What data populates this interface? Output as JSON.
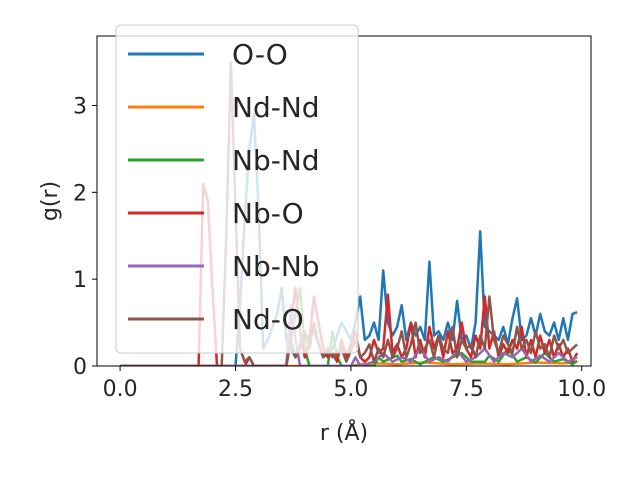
{
  "chart_data": {
    "type": "line",
    "xlabel": "r (Å)",
    "ylabel": "g(r)",
    "xlim": [
      -0.5,
      10.2
    ],
    "ylim": [
      0,
      3.8
    ],
    "xticks": [
      "0.0",
      "2.5",
      "5.0",
      "7.5",
      "10.0"
    ],
    "yticks": [
      "0",
      "1",
      "2",
      "3"
    ],
    "legend_position": "top-left",
    "series": [
      {
        "name": "O-O",
        "color": "#1f77b4",
        "points": [
          [
            0,
            0
          ],
          [
            2.5,
            0
          ],
          [
            2.6,
            0.7
          ],
          [
            2.7,
            1.7
          ],
          [
            2.8,
            2.5
          ],
          [
            2.9,
            2.9
          ],
          [
            3.0,
            1.8
          ],
          [
            3.1,
            0.2
          ],
          [
            3.2,
            0.3
          ],
          [
            3.4,
            0.6
          ],
          [
            3.5,
            0.9
          ],
          [
            3.6,
            0.3
          ],
          [
            3.8,
            0.1
          ],
          [
            4.0,
            0.3
          ],
          [
            4.2,
            0.4
          ],
          [
            4.4,
            0.1
          ],
          [
            4.6,
            0.2
          ],
          [
            4.8,
            0.5
          ],
          [
            5.0,
            0.3
          ],
          [
            5.1,
            0.5
          ],
          [
            5.2,
            0.8
          ],
          [
            5.3,
            0.3
          ],
          [
            5.4,
            0.35
          ],
          [
            5.5,
            0.5
          ],
          [
            5.6,
            0.3
          ],
          [
            5.7,
            1.1
          ],
          [
            5.8,
            0.5
          ],
          [
            5.9,
            0.35
          ],
          [
            6.0,
            0.45
          ],
          [
            6.1,
            0.7
          ],
          [
            6.2,
            0.3
          ],
          [
            6.3,
            0.5
          ],
          [
            6.4,
            0.35
          ],
          [
            6.5,
            0.45
          ],
          [
            6.6,
            0.3
          ],
          [
            6.7,
            1.2
          ],
          [
            6.8,
            0.35
          ],
          [
            6.9,
            0.4
          ],
          [
            7.0,
            0.3
          ],
          [
            7.1,
            0.5
          ],
          [
            7.2,
            0.3
          ],
          [
            7.3,
            0.75
          ],
          [
            7.4,
            0.3
          ],
          [
            7.5,
            0.35
          ],
          [
            7.6,
            0.2
          ],
          [
            7.7,
            0.5
          ],
          [
            7.8,
            1.55
          ],
          [
            7.9,
            0.45
          ],
          [
            8.0,
            0.4
          ],
          [
            8.1,
            0.35
          ],
          [
            8.2,
            0.3
          ],
          [
            8.3,
            0.45
          ],
          [
            8.4,
            0.25
          ],
          [
            8.5,
            0.55
          ],
          [
            8.6,
            0.78
          ],
          [
            8.7,
            0.3
          ],
          [
            8.8,
            0.35
          ],
          [
            8.9,
            0.55
          ],
          [
            9.0,
            0.35
          ],
          [
            9.1,
            0.6
          ],
          [
            9.2,
            0.4
          ],
          [
            9.3,
            0.35
          ],
          [
            9.4,
            0.5
          ],
          [
            9.5,
            0.3
          ],
          [
            9.6,
            0.55
          ],
          [
            9.7,
            0.3
          ],
          [
            9.8,
            0.6
          ],
          [
            9.9,
            0.62
          ]
        ]
      },
      {
        "name": "Nd-Nd",
        "color": "#ff7f0e",
        "points": [
          [
            0,
            0
          ],
          [
            5.0,
            0
          ],
          [
            5.2,
            0.02
          ],
          [
            5.6,
            0.03
          ],
          [
            6.0,
            0.02
          ],
          [
            6.6,
            0.04
          ],
          [
            7.2,
            0.02
          ],
          [
            7.8,
            0.03
          ],
          [
            8.4,
            0.02
          ],
          [
            9.0,
            0.04
          ],
          [
            9.6,
            0.03
          ],
          [
            9.9,
            0.05
          ]
        ]
      },
      {
        "name": "Nb-Nd",
        "color": "#2ca02c",
        "points": [
          [
            0,
            0
          ],
          [
            3.6,
            0
          ],
          [
            3.7,
            0.3
          ],
          [
            3.8,
            0.6
          ],
          [
            3.9,
            0.9
          ],
          [
            4.0,
            0.2
          ],
          [
            4.1,
            0
          ],
          [
            4.5,
            0
          ],
          [
            4.6,
            0.4
          ],
          [
            4.7,
            0.1
          ],
          [
            4.8,
            0
          ],
          [
            5.5,
            0
          ],
          [
            5.6,
            0.1
          ],
          [
            5.7,
            0.05
          ],
          [
            6.0,
            0.12
          ],
          [
            6.1,
            0.05
          ],
          [
            6.3,
            0.08
          ],
          [
            6.5,
            0.02
          ],
          [
            6.8,
            0.1
          ],
          [
            7.0,
            0.05
          ],
          [
            7.4,
            0.15
          ],
          [
            7.6,
            0.05
          ],
          [
            7.9,
            0.05
          ],
          [
            8.0,
            0.12
          ],
          [
            8.2,
            0.05
          ],
          [
            8.4,
            0.2
          ],
          [
            8.6,
            0.05
          ],
          [
            8.8,
            0.1
          ],
          [
            9.0,
            0.04
          ],
          [
            9.2,
            0.15
          ],
          [
            9.4,
            0.05
          ],
          [
            9.6,
            0.08
          ],
          [
            9.8,
            0.02
          ],
          [
            9.9,
            0.06
          ]
        ]
      },
      {
        "name": "Nb-O",
        "color": "#d62728",
        "points": [
          [
            0,
            0
          ],
          [
            1.7,
            0
          ],
          [
            1.8,
            2.1
          ],
          [
            1.9,
            1.9
          ],
          [
            2.0,
            0.9
          ],
          [
            2.1,
            0
          ],
          [
            2.7,
            0
          ],
          [
            2.8,
            0.1
          ],
          [
            2.9,
            0
          ],
          [
            3.6,
            0
          ],
          [
            3.7,
            0.5
          ],
          [
            3.8,
            0.9
          ],
          [
            3.9,
            0.4
          ],
          [
            4.0,
            0.1
          ],
          [
            4.1,
            0.3
          ],
          [
            4.2,
            0.8
          ],
          [
            4.3,
            0.5
          ],
          [
            4.4,
            0.2
          ],
          [
            4.5,
            0.1
          ],
          [
            4.6,
            0.15
          ],
          [
            4.7,
            0.05
          ],
          [
            4.8,
            0.3
          ],
          [
            4.9,
            0.1
          ],
          [
            5.0,
            0.25
          ],
          [
            5.1,
            0.4
          ],
          [
            5.2,
            0.1
          ],
          [
            5.3,
            0.05
          ],
          [
            5.4,
            0.1
          ],
          [
            5.5,
            0.3
          ],
          [
            5.6,
            0.15
          ],
          [
            5.7,
            0.2
          ],
          [
            5.8,
            0.82
          ],
          [
            5.9,
            0.15
          ],
          [
            6.0,
            0.25
          ],
          [
            6.1,
            0.1
          ],
          [
            6.2,
            0.2
          ],
          [
            6.3,
            0.5
          ],
          [
            6.4,
            0.1
          ],
          [
            6.5,
            0.3
          ],
          [
            6.6,
            0.1
          ],
          [
            6.7,
            0.45
          ],
          [
            6.8,
            0.2
          ],
          [
            6.9,
            0.35
          ],
          [
            7.0,
            0.1
          ],
          [
            7.1,
            0.4
          ],
          [
            7.2,
            0.15
          ],
          [
            7.3,
            0.2
          ],
          [
            7.4,
            0.5
          ],
          [
            7.5,
            0.2
          ],
          [
            7.6,
            0.1
          ],
          [
            7.7,
            0.35
          ],
          [
            7.8,
            0.2
          ],
          [
            7.9,
            0.8
          ],
          [
            8.0,
            0.2
          ],
          [
            8.1,
            0.4
          ],
          [
            8.2,
            0.1
          ],
          [
            8.3,
            0.25
          ],
          [
            8.4,
            0.15
          ],
          [
            8.5,
            0.3
          ],
          [
            8.6,
            0.2
          ],
          [
            8.7,
            0.45
          ],
          [
            8.8,
            0.1
          ],
          [
            8.9,
            0.3
          ],
          [
            9.0,
            0.1
          ],
          [
            9.1,
            0.35
          ],
          [
            9.2,
            0.15
          ],
          [
            9.3,
            0.3
          ],
          [
            9.4,
            0.1
          ],
          [
            9.5,
            0.25
          ],
          [
            9.6,
            0.1
          ],
          [
            9.7,
            0.2
          ],
          [
            9.8,
            0.05
          ],
          [
            9.9,
            0.15
          ]
        ]
      },
      {
        "name": "Nb-Nb",
        "color": "#9467bd",
        "points": [
          [
            0,
            0
          ],
          [
            3.6,
            0
          ],
          [
            3.7,
            0.7
          ],
          [
            3.8,
            0.3
          ],
          [
            3.9,
            0
          ],
          [
            5.0,
            0
          ],
          [
            5.1,
            0.1
          ],
          [
            5.2,
            0
          ],
          [
            5.5,
            0.05
          ],
          [
            5.7,
            0.15
          ],
          [
            5.9,
            0.05
          ],
          [
            6.1,
            0.1
          ],
          [
            6.3,
            0.05
          ],
          [
            6.5,
            0.2
          ],
          [
            6.7,
            0.05
          ],
          [
            6.9,
            0.1
          ],
          [
            7.1,
            0.05
          ],
          [
            7.3,
            0.18
          ],
          [
            7.5,
            0.05
          ],
          [
            7.7,
            0.1
          ],
          [
            7.9,
            0.2
          ],
          [
            8.1,
            0.05
          ],
          [
            8.3,
            0.15
          ],
          [
            8.5,
            0.1
          ],
          [
            8.7,
            0.2
          ],
          [
            8.9,
            0.05
          ],
          [
            9.1,
            0.12
          ],
          [
            9.3,
            0.05
          ],
          [
            9.5,
            0.15
          ],
          [
            9.7,
            0.05
          ],
          [
            9.9,
            0.1
          ]
        ]
      },
      {
        "name": "Nd-O",
        "color": "#8c564b",
        "points": [
          [
            0,
            0
          ],
          [
            2.2,
            0
          ],
          [
            2.3,
            1.5
          ],
          [
            2.4,
            3.5
          ],
          [
            2.5,
            1.8
          ],
          [
            2.6,
            0.2
          ],
          [
            2.7,
            0.05
          ],
          [
            2.8,
            0.1
          ],
          [
            2.9,
            0
          ],
          [
            3.6,
            0
          ],
          [
            3.7,
            0.3
          ],
          [
            3.8,
            0.1
          ],
          [
            4.0,
            0.4
          ],
          [
            4.1,
            0.2
          ],
          [
            4.2,
            0.5
          ],
          [
            4.3,
            0.25
          ],
          [
            4.4,
            0.1
          ],
          [
            4.5,
            0.2
          ],
          [
            4.6,
            0.1
          ],
          [
            4.8,
            0.2
          ],
          [
            4.9,
            0.05
          ],
          [
            5.1,
            0.3
          ],
          [
            5.2,
            0.1
          ],
          [
            5.3,
            0.15
          ],
          [
            5.4,
            0.25
          ],
          [
            5.5,
            0.05
          ],
          [
            5.6,
            0.2
          ],
          [
            5.7,
            0.1
          ],
          [
            5.8,
            0.3
          ],
          [
            5.9,
            0.1
          ],
          [
            6.0,
            0.2
          ],
          [
            6.1,
            0.4
          ],
          [
            6.2,
            0.1
          ],
          [
            6.3,
            0.25
          ],
          [
            6.4,
            0.5
          ],
          [
            6.5,
            0.15
          ],
          [
            6.6,
            0.2
          ],
          [
            6.7,
            0.3
          ],
          [
            6.8,
            0.1
          ],
          [
            6.9,
            0.35
          ],
          [
            7.0,
            0.2
          ],
          [
            7.1,
            0.15
          ],
          [
            7.2,
            0.45
          ],
          [
            7.3,
            0.1
          ],
          [
            7.4,
            0.3
          ],
          [
            7.5,
            0.2
          ],
          [
            7.6,
            0.25
          ],
          [
            7.7,
            0.1
          ],
          [
            7.8,
            0.35
          ],
          [
            7.9,
            0.2
          ],
          [
            8.0,
            0.8
          ],
          [
            8.1,
            0.3
          ],
          [
            8.2,
            0.15
          ],
          [
            8.3,
            0.35
          ],
          [
            8.4,
            0.25
          ],
          [
            8.5,
            0.15
          ],
          [
            8.6,
            0.45
          ],
          [
            8.7,
            0.2
          ],
          [
            8.8,
            0.3
          ],
          [
            8.9,
            0.15
          ],
          [
            9.0,
            0.4
          ],
          [
            9.1,
            0.2
          ],
          [
            9.2,
            0.25
          ],
          [
            9.3,
            0.1
          ],
          [
            9.4,
            0.35
          ],
          [
            9.5,
            0.2
          ],
          [
            9.6,
            0.3
          ],
          [
            9.7,
            0.15
          ],
          [
            9.8,
            0.2
          ],
          [
            9.9,
            0.25
          ]
        ]
      }
    ]
  }
}
